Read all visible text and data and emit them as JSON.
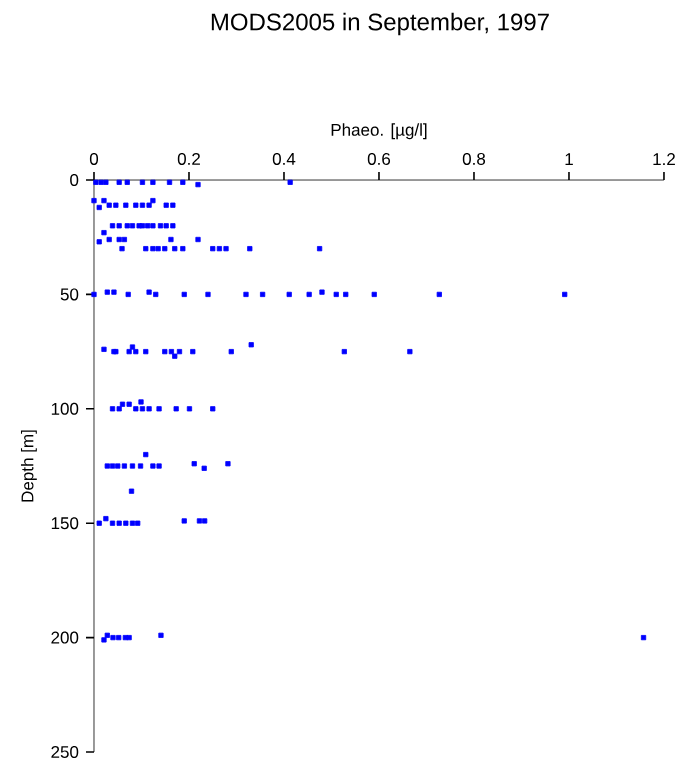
{
  "chart_data": {
    "type": "scatter",
    "title": "MODS2005 in September, 1997",
    "xlabel": "Phaeo. [µg/l]",
    "ylabel": "Depth [m]",
    "x": [
      0.004,
      0.015,
      0.025,
      0.053,
      0.07,
      0.102,
      0.124,
      0.159,
      0.187,
      0.219,
      0.413,
      0.0,
      0.011,
      0.021,
      0.032,
      0.046,
      0.067,
      0.088,
      0.102,
      0.116,
      0.124,
      0.152,
      0.166,
      0.039,
      0.053,
      0.07,
      0.081,
      0.095,
      0.102,
      0.113,
      0.124,
      0.14,
      0.152,
      0.166,
      0.021,
      0.011,
      0.032,
      0.053,
      0.064,
      0.162,
      0.219,
      0.059,
      0.109,
      0.124,
      0.135,
      0.149,
      0.17,
      0.187,
      0.25,
      0.264,
      0.278,
      0.328,
      0.475,
      0.0,
      0.028,
      0.042,
      0.072,
      0.116,
      0.13,
      0.19,
      0.24,
      0.32,
      0.355,
      0.411,
      0.453,
      0.48,
      0.51,
      0.53,
      0.59,
      0.727,
      0.991,
      0.021,
      0.042,
      0.046,
      0.074,
      0.088,
      0.109,
      0.081,
      0.149,
      0.163,
      0.18,
      0.17,
      0.208,
      0.289,
      0.331,
      0.527,
      0.665,
      0.039,
      0.053,
      0.06,
      0.074,
      0.088,
      0.102,
      0.116,
      0.137,
      0.099,
      0.173,
      0.201,
      0.25,
      0.028,
      0.039,
      0.05,
      0.064,
      0.081,
      0.098,
      0.124,
      0.137,
      0.211,
      0.232,
      0.282,
      0.109,
      0.079,
      0.011,
      0.025,
      0.039,
      0.053,
      0.067,
      0.081,
      0.092,
      0.19,
      0.222,
      0.233,
      0.021,
      0.028,
      0.04,
      0.052,
      0.066,
      0.074,
      0.141,
      1.157
    ],
    "values": [
      1,
      1,
      1,
      1,
      1,
      1,
      1,
      1,
      1,
      2,
      1,
      9,
      12,
      9,
      11,
      11,
      11,
      11,
      11,
      11,
      9,
      11,
      11,
      20,
      20,
      20,
      20,
      20,
      20,
      20,
      20,
      20,
      20,
      20,
      23,
      27,
      26,
      26,
      26,
      26,
      26,
      30,
      30,
      30,
      30,
      30,
      30,
      30,
      30,
      30,
      30,
      30,
      30,
      50,
      49,
      49,
      50,
      49,
      50,
      50,
      50,
      50,
      50,
      50,
      50,
      49,
      50,
      50,
      50,
      50,
      50,
      74,
      75,
      75,
      75,
      75,
      75,
      73,
      75,
      75,
      75,
      77,
      75,
      75,
      72,
      75,
      75,
      100,
      100,
      98,
      98,
      100,
      100,
      100,
      100,
      97,
      100,
      100,
      100,
      125,
      125,
      125,
      125,
      125,
      125,
      125,
      125,
      124,
      126,
      124,
      120,
      136,
      150,
      148,
      150,
      150,
      150,
      150,
      150,
      149,
      149,
      149,
      201,
      199,
      200,
      200,
      200,
      200,
      199,
      200
    ],
    "color": "#0000ff",
    "marker": "square",
    "xlim": [
      0,
      1.2
    ],
    "xticks": [
      0,
      0.2,
      0.4,
      0.6,
      0.8,
      1,
      1.2
    ],
    "ylim": [
      250,
      0
    ],
    "yticks": [
      0,
      50,
      100,
      150,
      200,
      250
    ]
  }
}
